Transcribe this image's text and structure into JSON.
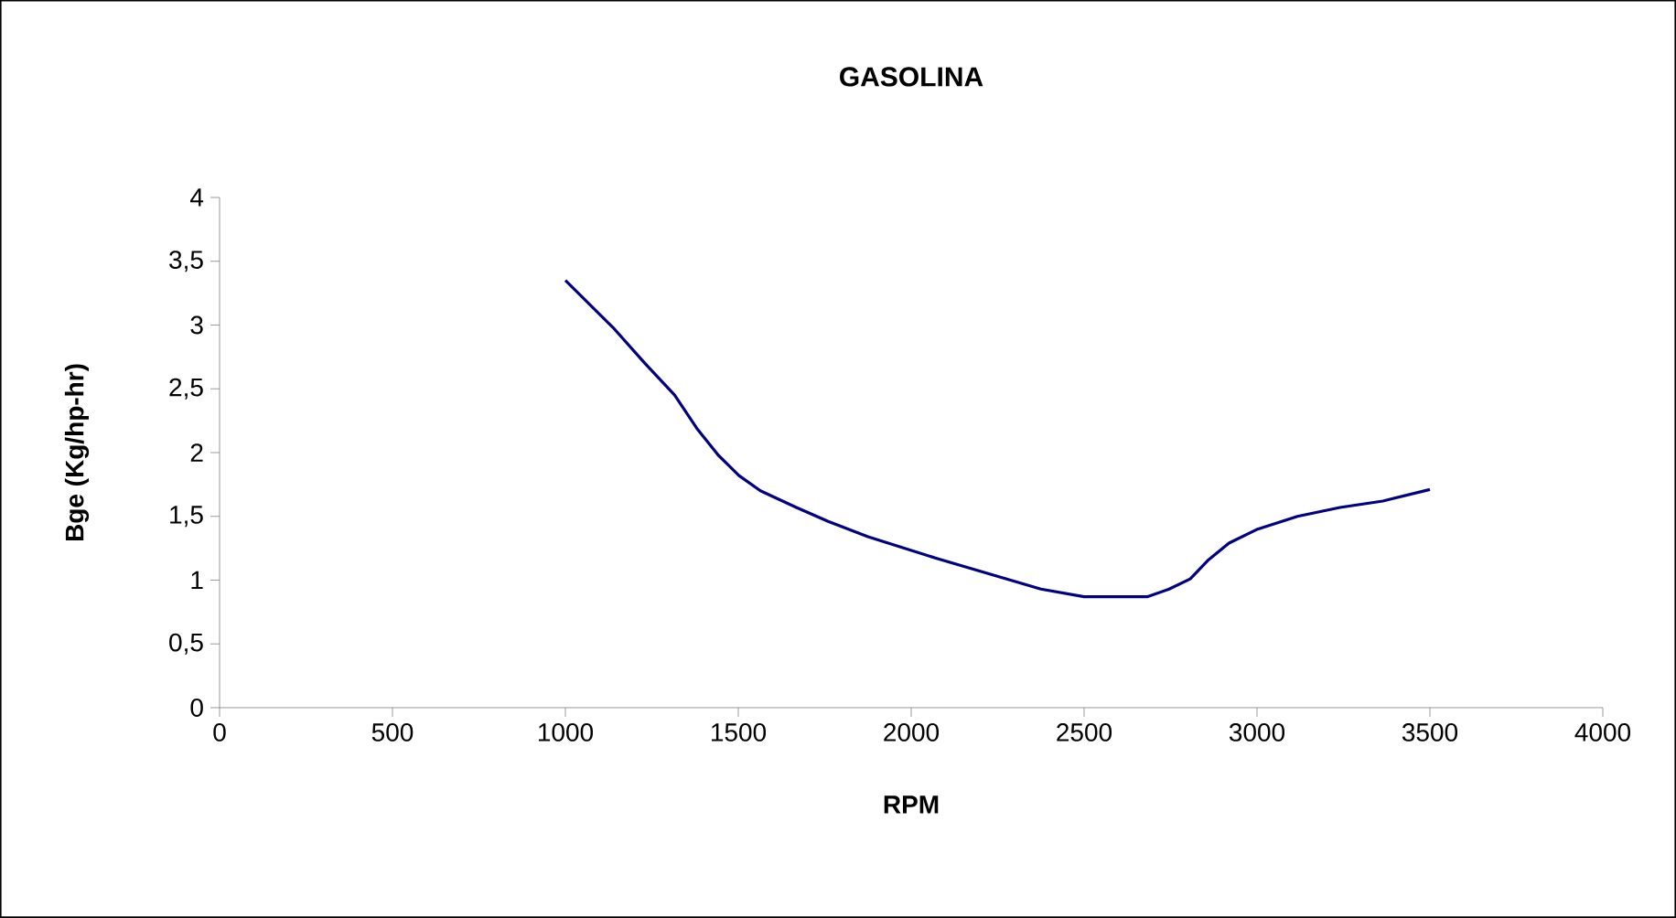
{
  "chart_data": {
    "type": "line",
    "title": "GASOLINA",
    "xlabel": "RPM",
    "ylabel": "Bge (Kg/hp-hr)",
    "x": [
      1000,
      1138,
      1230,
      1316,
      1380,
      1442,
      1502,
      1564,
      1668,
      1760,
      1875,
      2074,
      2375,
      2500,
      2684,
      2746,
      2807,
      2860,
      2919,
      3002,
      3117,
      3240,
      3364,
      3500
    ],
    "series": [
      {
        "color": "#000080",
        "values": [
          3.35,
          2.98,
          2.7,
          2.45,
          2.19,
          1.98,
          1.82,
          1.7,
          1.57,
          1.46,
          1.34,
          1.17,
          0.93,
          0.87,
          0.87,
          0.93,
          1.01,
          1.16,
          1.29,
          1.4,
          1.5,
          1.57,
          1.62,
          1.71
        ]
      }
    ],
    "xlim": [
      0,
      4000
    ],
    "ylim": [
      0,
      4
    ],
    "xticks": [
      0,
      500,
      1000,
      1500,
      2000,
      2500,
      3000,
      3500,
      4000
    ],
    "yticks": [
      0,
      {
        "value": 0.5,
        "label": "0,5"
      },
      1,
      {
        "value": 1.5,
        "label": "1,5"
      },
      2,
      {
        "value": 2.5,
        "label": "2,5"
      },
      3,
      {
        "value": 3.5,
        "label": "3,5"
      },
      4
    ],
    "marker": "none",
    "line_style": "solid"
  }
}
